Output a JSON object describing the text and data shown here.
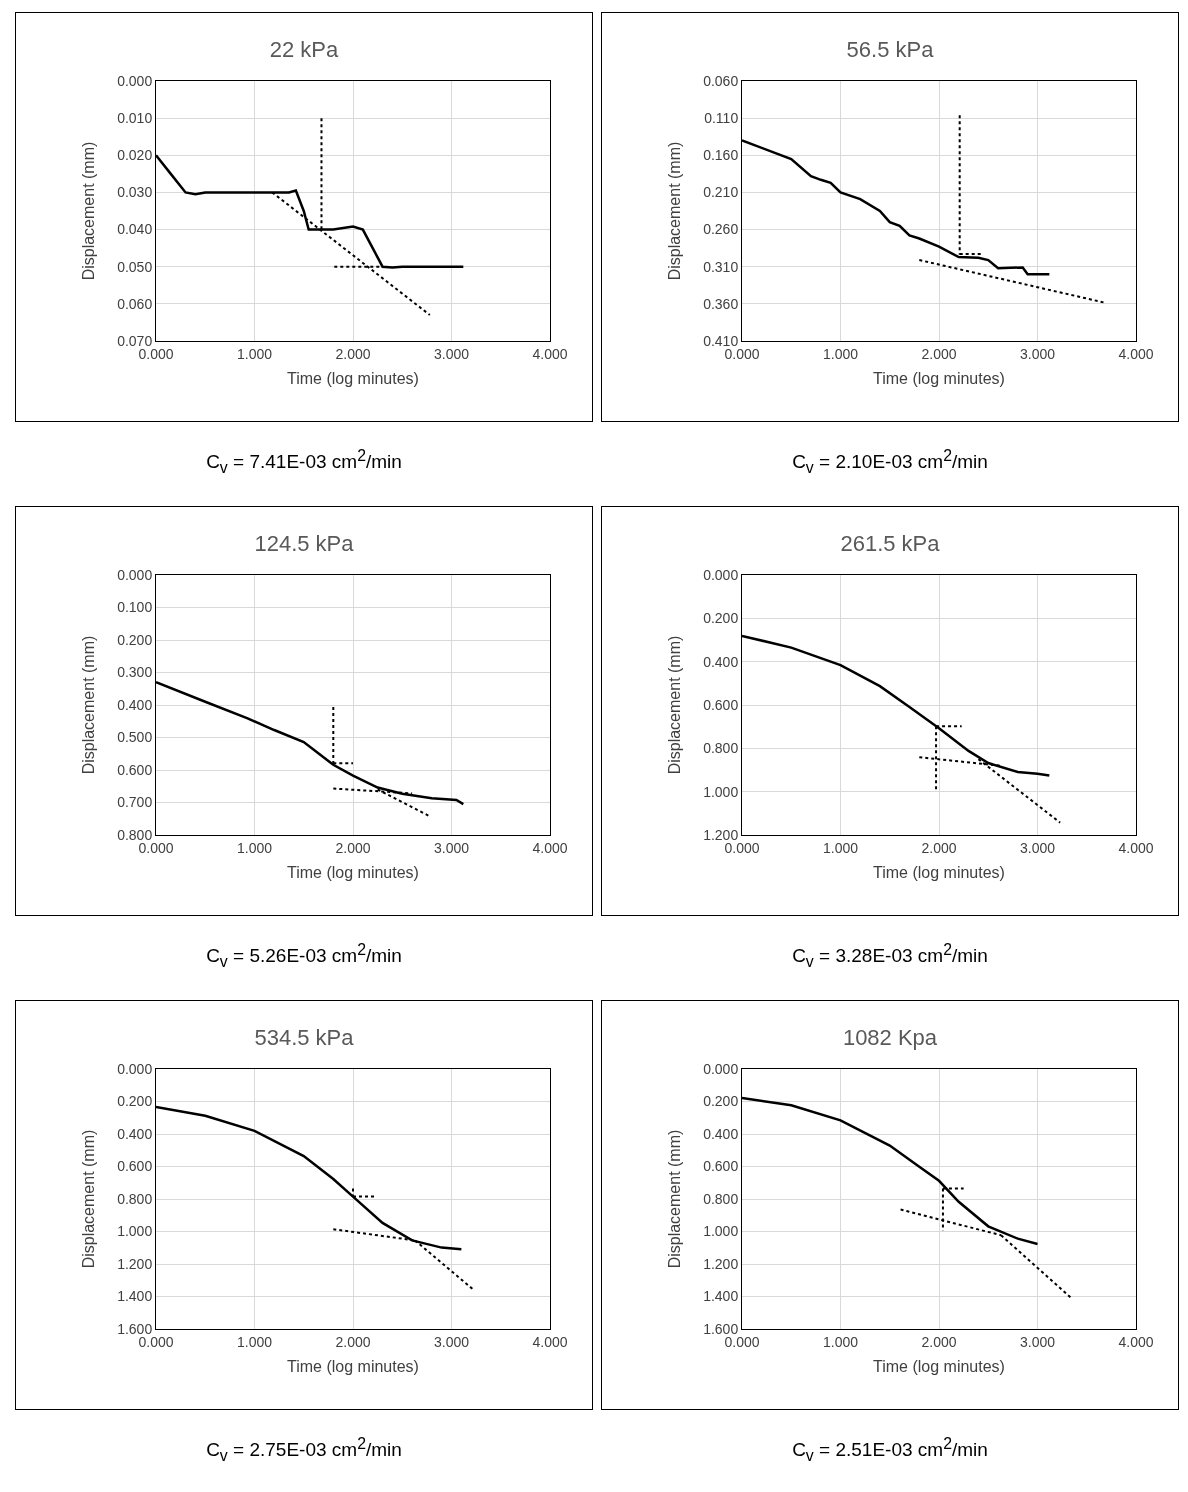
{
  "chart_data": [
    {
      "type": "line",
      "title": "22 kPa",
      "xlabel": "Time (log minutes)",
      "ylabel": "Displacement (mm)",
      "grid": true,
      "marker": "none",
      "annotations": [
        "C$_{v}$ = 7.41E-03 cm$^{2}$/min"
      ],
      "xlim": [
        0,
        4
      ],
      "xticks": [
        {
          "value": 0,
          "label": "0.000"
        },
        {
          "value": 1,
          "label": "1.000"
        },
        {
          "value": 2,
          "label": "2.000"
        },
        {
          "value": 3,
          "label": "3.000"
        },
        {
          "value": 4,
          "label": "4.000"
        }
      ],
      "ylim": [
        0.07,
        0
      ],
      "yticks": [
        {
          "value": 0,
          "label": "0.000"
        },
        {
          "value": 0.01,
          "label": "0.010"
        },
        {
          "value": 0.02,
          "label": "0.020"
        },
        {
          "value": 0.03,
          "label": "0.030"
        },
        {
          "value": 0.04,
          "label": "0.040"
        },
        {
          "value": 0.05,
          "label": "0.050"
        },
        {
          "value": 0.06,
          "label": "0.060"
        },
        {
          "value": 0.07,
          "label": "0.070"
        }
      ],
      "series": [
        {
          "color": "#000000",
          "line_style": "solid",
          "x": [
            0,
            0.15,
            0.3,
            0.4,
            0.5,
            1.0,
            1.35,
            1.42,
            1.5,
            1.55,
            1.8,
            2.0,
            2.1,
            2.2,
            2.3,
            2.4,
            2.5,
            3.12
          ],
          "values": [
            0.02,
            0.025,
            0.03,
            0.0305,
            0.03,
            0.03,
            0.03,
            0.0295,
            0.035,
            0.04,
            0.04,
            0.0392,
            0.04,
            0.045,
            0.05,
            0.0502,
            0.05,
            0.05
          ]
        },
        {
          "color": "#000000",
          "line_style": "dotted",
          "x": [
            1.68,
            1.68
          ],
          "values": [
            0.01,
            0.04
          ]
        },
        {
          "color": "#000000",
          "line_style": "dotted",
          "x": [
            1.18,
            2.78
          ],
          "values": [
            0.03,
            0.063
          ]
        },
        {
          "color": "#000000",
          "line_style": "dotted",
          "x": [
            1.81,
            2.28
          ],
          "values": [
            0.05,
            0.05
          ]
        }
      ]
    },
    {
      "type": "line",
      "title": "56.5 kPa",
      "xlabel": "Time (log minutes)",
      "ylabel": "Displacement (mm)",
      "grid": true,
      "marker": "none",
      "annotations": [
        "C$_{v}$ = 2.10E-03 cm$^{2}$/min"
      ],
      "xlim": [
        0,
        4
      ],
      "xticks": [
        {
          "value": 0,
          "label": "0.000"
        },
        {
          "value": 1,
          "label": "1.000"
        },
        {
          "value": 2,
          "label": "2.000"
        },
        {
          "value": 3,
          "label": "3.000"
        },
        {
          "value": 4,
          "label": "4.000"
        }
      ],
      "ylim": [
        0.41,
        0.06
      ],
      "yticks": [
        {
          "value": 0.06,
          "label": "0.060"
        },
        {
          "value": 0.11,
          "label": "0.110"
        },
        {
          "value": 0.16,
          "label": "0.160"
        },
        {
          "value": 0.21,
          "label": "0.210"
        },
        {
          "value": 0.26,
          "label": "0.260"
        },
        {
          "value": 0.31,
          "label": "0.310"
        },
        {
          "value": 0.36,
          "label": "0.360"
        },
        {
          "value": 0.41,
          "label": "0.410"
        }
      ],
      "series": [
        {
          "color": "#000000",
          "line_style": "solid",
          "x": [
            0,
            0.5,
            0.7,
            0.8,
            0.9,
            1.0,
            1.2,
            1.4,
            1.5,
            1.6,
            1.7,
            1.8,
            2.0,
            2.2,
            2.4,
            2.5,
            2.6,
            2.85,
            2.9,
            3.12
          ],
          "values": [
            0.14,
            0.165,
            0.188,
            0.193,
            0.197,
            0.21,
            0.219,
            0.235,
            0.25,
            0.255,
            0.268,
            0.272,
            0.283,
            0.297,
            0.298,
            0.301,
            0.312,
            0.311,
            0.32,
            0.32
          ]
        },
        {
          "color": "#000000",
          "line_style": "dotted",
          "x": [
            2.21,
            2.21
          ],
          "values": [
            0.106,
            0.294
          ]
        },
        {
          "color": "#000000",
          "line_style": "dotted",
          "x": [
            2.21,
            2.45
          ],
          "values": [
            0.293,
            0.293
          ]
        },
        {
          "color": "#000000",
          "line_style": "dotted",
          "x": [
            1.8,
            3.67
          ],
          "values": [
            0.301,
            0.358
          ]
        }
      ]
    },
    {
      "type": "line",
      "title": "124.5 kPa",
      "xlabel": "Time (log minutes)",
      "ylabel": "Displacement (mm)",
      "grid": true,
      "marker": "none",
      "annotations": [
        "C$_{v}$ = 5.26E-03 cm$^{2}$/min"
      ],
      "xlim": [
        0,
        4
      ],
      "xticks": [
        {
          "value": 0,
          "label": "0.000"
        },
        {
          "value": 1,
          "label": "1.000"
        },
        {
          "value": 2,
          "label": "2.000"
        },
        {
          "value": 3,
          "label": "3.000"
        },
        {
          "value": 4,
          "label": "4.000"
        }
      ],
      "ylim": [
        0.8,
        0
      ],
      "yticks": [
        {
          "value": 0,
          "label": "0.000"
        },
        {
          "value": 0.1,
          "label": "0.100"
        },
        {
          "value": 0.2,
          "label": "0.200"
        },
        {
          "value": 0.3,
          "label": "0.300"
        },
        {
          "value": 0.4,
          "label": "0.400"
        },
        {
          "value": 0.5,
          "label": "0.500"
        },
        {
          "value": 0.6,
          "label": "0.600"
        },
        {
          "value": 0.7,
          "label": "0.700"
        },
        {
          "value": 0.8,
          "label": "0.800"
        }
      ],
      "series": [
        {
          "color": "#000000",
          "line_style": "solid",
          "x": [
            0,
            0.5,
            0.93,
            1.2,
            1.5,
            1.8,
            2.0,
            2.25,
            2.5,
            2.8,
            3.05,
            3.12
          ],
          "values": [
            0.33,
            0.39,
            0.441,
            0.477,
            0.514,
            0.584,
            0.617,
            0.654,
            0.673,
            0.687,
            0.692,
            0.705
          ]
        },
        {
          "color": "#000000",
          "line_style": "dotted",
          "x": [
            1.8,
            1.8
          ],
          "values": [
            0.406,
            0.58
          ]
        },
        {
          "color": "#000000",
          "line_style": "dotted",
          "x": [
            1.8,
            2.0
          ],
          "values": [
            0.579,
            0.579
          ]
        },
        {
          "color": "#000000",
          "line_style": "dotted",
          "x": [
            1.8,
            2.6
          ],
          "values": [
            0.657,
            0.672
          ]
        },
        {
          "color": "#000000",
          "line_style": "dotted",
          "x": [
            2.25,
            2.79
          ],
          "values": [
            0.66,
            0.744
          ]
        }
      ]
    },
    {
      "type": "line",
      "title": "261.5 kPa",
      "xlabel": "Time (log minutes)",
      "ylabel": "Displacement (mm)",
      "grid": true,
      "marker": "none",
      "annotations": [
        "C$_{v}$ = 3.28E-03 cm$^{2}$/min"
      ],
      "xlim": [
        0,
        4
      ],
      "xticks": [
        {
          "value": 0,
          "label": "0.000"
        },
        {
          "value": 1,
          "label": "1.000"
        },
        {
          "value": 2,
          "label": "2.000"
        },
        {
          "value": 3,
          "label": "3.000"
        },
        {
          "value": 4,
          "label": "4.000"
        }
      ],
      "ylim": [
        1.2,
        0
      ],
      "yticks": [
        {
          "value": 0,
          "label": "0.000"
        },
        {
          "value": 0.2,
          "label": "0.200"
        },
        {
          "value": 0.4,
          "label": "0.400"
        },
        {
          "value": 0.6,
          "label": "0.600"
        },
        {
          "value": 0.8,
          "label": "0.800"
        },
        {
          "value": 1.0,
          "label": "1.000"
        },
        {
          "value": 1.2,
          "label": "1.200"
        }
      ],
      "series": [
        {
          "color": "#000000",
          "line_style": "solid",
          "x": [
            0,
            0.5,
            1.0,
            1.4,
            1.7,
            2.0,
            2.3,
            2.5,
            2.8,
            3.0,
            3.12
          ],
          "values": [
            0.281,
            0.335,
            0.416,
            0.513,
            0.609,
            0.707,
            0.812,
            0.868,
            0.909,
            0.917,
            0.925
          ]
        },
        {
          "color": "#000000",
          "line_style": "dotted",
          "x": [
            1.97,
            1.97
          ],
          "values": [
            0.698,
            0.989
          ]
        },
        {
          "color": "#000000",
          "line_style": "dotted",
          "x": [
            1.97,
            2.23
          ],
          "values": [
            0.698,
            0.698
          ]
        },
        {
          "color": "#000000",
          "line_style": "dotted",
          "x": [
            1.8,
            2.62
          ],
          "values": [
            0.841,
            0.88
          ]
        },
        {
          "color": "#000000",
          "line_style": "dotted",
          "x": [
            2.4,
            3.23
          ],
          "values": [
            0.85,
            1.143
          ]
        }
      ]
    },
    {
      "type": "line",
      "title": "534.5 kPa",
      "xlabel": "Time (log minutes)",
      "ylabel": "Displacement (mm)",
      "grid": true,
      "marker": "none",
      "annotations": [
        "C$_{v}$ = 2.75E-03 cm$^{2}$/min"
      ],
      "xlim": [
        0,
        4
      ],
      "xticks": [
        {
          "value": 0,
          "label": "0.000"
        },
        {
          "value": 1,
          "label": "1.000"
        },
        {
          "value": 2,
          "label": "2.000"
        },
        {
          "value": 3,
          "label": "3.000"
        },
        {
          "value": 4,
          "label": "4.000"
        }
      ],
      "ylim": [
        1.6,
        0
      ],
      "yticks": [
        {
          "value": 0,
          "label": "0.000"
        },
        {
          "value": 0.2,
          "label": "0.200"
        },
        {
          "value": 0.4,
          "label": "0.400"
        },
        {
          "value": 0.6,
          "label": "0.600"
        },
        {
          "value": 0.8,
          "label": "0.800"
        },
        {
          "value": 1.0,
          "label": "1.000"
        },
        {
          "value": 1.2,
          "label": "1.200"
        },
        {
          "value": 1.4,
          "label": "1.400"
        },
        {
          "value": 1.6,
          "label": "1.600"
        }
      ],
      "series": [
        {
          "color": "#000000",
          "line_style": "solid",
          "x": [
            0,
            0.5,
            1.0,
            1.5,
            1.8,
            2.0,
            2.3,
            2.6,
            2.9,
            3.1
          ],
          "values": [
            0.234,
            0.288,
            0.381,
            0.536,
            0.677,
            0.785,
            0.947,
            1.055,
            1.099,
            1.109
          ]
        },
        {
          "color": "#000000",
          "line_style": "dotted",
          "x": [
            2.0,
            2.0
          ],
          "values": [
            0.735,
            0.785
          ]
        },
        {
          "color": "#000000",
          "line_style": "dotted",
          "x": [
            2.0,
            2.22
          ],
          "values": [
            0.785,
            0.785
          ]
        },
        {
          "color": "#000000",
          "line_style": "dotted",
          "x": [
            1.8,
            2.63
          ],
          "values": [
            0.986,
            1.055
          ]
        },
        {
          "color": "#000000",
          "line_style": "dotted",
          "x": [
            2.63,
            3.23
          ],
          "values": [
            1.055,
            1.362
          ]
        }
      ]
    },
    {
      "type": "line",
      "title": "1082 Kpa",
      "xlabel": "Time (log minutes)",
      "ylabel": "Displacement (mm)",
      "grid": true,
      "marker": "none",
      "annotations": [
        "C$_{v}$ = 2.51E-03 cm$^{2}$/min"
      ],
      "xlim": [
        0,
        4
      ],
      "xticks": [
        {
          "value": 0,
          "label": "0.000"
        },
        {
          "value": 1,
          "label": "1.000"
        },
        {
          "value": 2,
          "label": "2.000"
        },
        {
          "value": 3,
          "label": "3.000"
        },
        {
          "value": 4,
          "label": "4.000"
        }
      ],
      "ylim": [
        1.6,
        0
      ],
      "yticks": [
        {
          "value": 0,
          "label": "0.000"
        },
        {
          "value": 0.2,
          "label": "0.200"
        },
        {
          "value": 0.4,
          "label": "0.400"
        },
        {
          "value": 0.6,
          "label": "0.600"
        },
        {
          "value": 0.8,
          "label": "0.800"
        },
        {
          "value": 1.0,
          "label": "1.000"
        },
        {
          "value": 1.2,
          "label": "1.200"
        },
        {
          "value": 1.4,
          "label": "1.400"
        },
        {
          "value": 1.6,
          "label": "1.600"
        }
      ],
      "series": [
        {
          "color": "#000000",
          "line_style": "solid",
          "x": [
            0,
            0.5,
            1.0,
            1.5,
            1.8,
            2.0,
            2.2,
            2.5,
            2.8,
            3.0
          ],
          "values": [
            0.179,
            0.223,
            0.316,
            0.471,
            0.601,
            0.688,
            0.817,
            0.968,
            1.044,
            1.077
          ]
        },
        {
          "color": "#000000",
          "line_style": "dotted",
          "x": [
            2.04,
            2.04
          ],
          "values": [
            0.735,
            0.995
          ]
        },
        {
          "color": "#000000",
          "line_style": "dotted",
          "x": [
            2.04,
            2.25
          ],
          "values": [
            0.735,
            0.735
          ]
        },
        {
          "color": "#000000",
          "line_style": "dotted",
          "x": [
            1.61,
            2.63
          ],
          "values": [
            0.865,
            1.023
          ]
        },
        {
          "color": "#000000",
          "line_style": "dotted",
          "x": [
            2.63,
            3.34
          ],
          "values": [
            1.023,
            1.408
          ]
        }
      ]
    }
  ]
}
